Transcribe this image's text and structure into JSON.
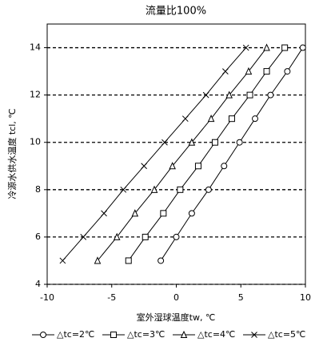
{
  "chart_data": {
    "type": "line",
    "title": "流量比100%",
    "xlabel": "室外湿球温度tw, ℃",
    "ylabel": "冷源水供水温度 tcl, ℃",
    "xlim": [
      -10,
      10
    ],
    "xticks": [
      -10,
      -5,
      0,
      5,
      10
    ],
    "ylim": [
      4,
      15
    ],
    "yticks": [
      4,
      6,
      8,
      10,
      12,
      14
    ],
    "grid": true,
    "grid_style": "dashed",
    "legend": "bottom",
    "series": [
      {
        "name": "△tc=2℃",
        "color": "#000000",
        "marker": "circle",
        "x": [
          -1.2,
          0.0,
          1.2,
          2.5,
          3.7,
          4.9,
          6.1,
          7.3,
          8.6,
          9.8
        ],
        "values": [
          5,
          6,
          7,
          8,
          9,
          10,
          11,
          12,
          13,
          14
        ]
      },
      {
        "name": "△tc=3℃",
        "color": "#000000",
        "marker": "square",
        "x": [
          -3.7,
          -2.4,
          -1.0,
          0.3,
          1.7,
          3.0,
          4.3,
          5.7,
          7.0,
          8.4
        ],
        "values": [
          5,
          6,
          7,
          8,
          9,
          10,
          11,
          12,
          13,
          14
        ]
      },
      {
        "name": "△tc=4℃",
        "color": "#000000",
        "marker": "triangle",
        "x": [
          -6.1,
          -4.6,
          -3.2,
          -1.7,
          -0.3,
          1.2,
          2.7,
          4.1,
          5.6,
          7.0
        ],
        "values": [
          5,
          6,
          7,
          8,
          9,
          10,
          11,
          12,
          13,
          14
        ]
      },
      {
        "name": "△tc=5℃",
        "color": "#000000",
        "marker": "x",
        "x": [
          -8.8,
          -7.2,
          -5.6,
          -4.1,
          -2.5,
          -0.9,
          0.7,
          2.3,
          3.8,
          5.4
        ],
        "values": [
          5,
          6,
          7,
          8,
          9,
          10,
          11,
          12,
          13,
          14
        ]
      }
    ]
  }
}
